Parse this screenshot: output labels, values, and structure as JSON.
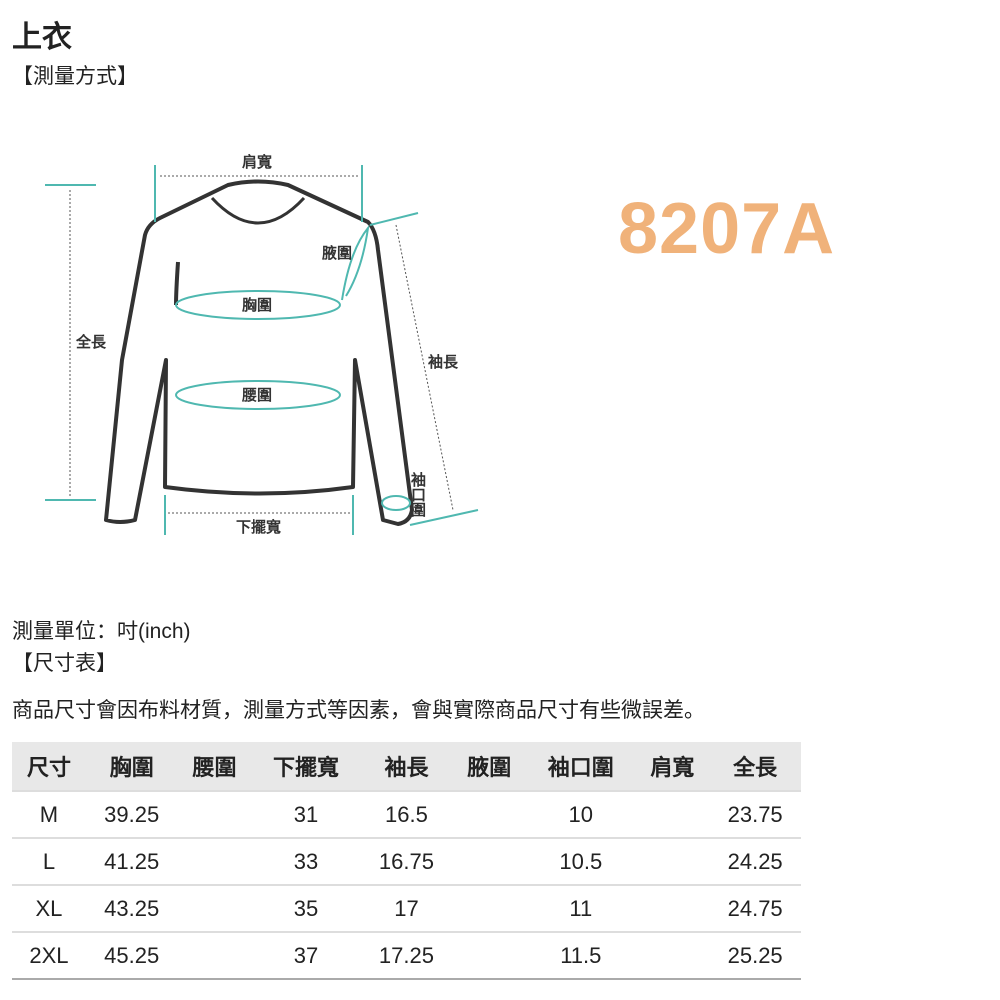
{
  "title": "上衣",
  "measure_heading": "【測量方式】",
  "product_code": "8207A",
  "diagram": {
    "shoulder": "肩寬",
    "armhole": "腋圍",
    "chest": "胸圍",
    "length": "全長",
    "sleeve": "袖長",
    "waist": "腰圍",
    "cuff": "袖口圍",
    "hem": "下擺寬"
  },
  "unit": "測量單位：吋(inch)",
  "size_heading": "【尺寸表】",
  "note": "商品尺寸會因布料材質，測量方式等因素，會與實際商品尺寸有些微誤差。",
  "table": {
    "headers": [
      "尺寸",
      "胸圍",
      "腰圍",
      "下擺寬",
      "袖長",
      "腋圍",
      "袖口圍",
      "肩寬",
      "全長"
    ],
    "rows": [
      [
        "M",
        "39.25",
        "",
        "31",
        "16.5",
        "",
        "10",
        "",
        "23.75"
      ],
      [
        "L",
        "41.25",
        "",
        "33",
        "16.75",
        "",
        "10.5",
        "",
        "24.25"
      ],
      [
        "XL",
        "43.25",
        "",
        "35",
        "17",
        "",
        "11",
        "",
        "24.75"
      ],
      [
        "2XL",
        "45.25",
        "",
        "37",
        "17.25",
        "",
        "11.5",
        "",
        "25.25"
      ]
    ]
  },
  "colors": {
    "accent_line": "#4fb8b0",
    "code": "#f0b27a"
  }
}
